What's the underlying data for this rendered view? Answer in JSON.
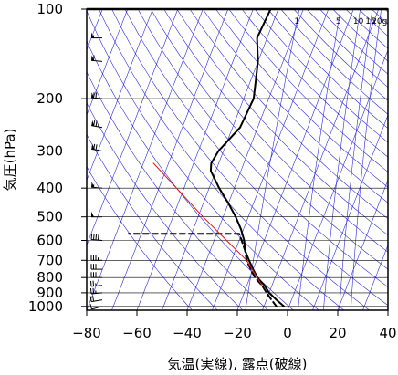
{
  "chart_data": {
    "type": "line",
    "subtype": "skew-T log-P sounding diagram",
    "xlabel": "気温(実線), 露点(破線)",
    "ylabel": "気圧(hPa)",
    "x_ticks": [
      -80,
      -60,
      -40,
      -20,
      0,
      20,
      40
    ],
    "y_ticks": [
      100,
      200,
      300,
      400,
      500,
      600,
      700,
      800,
      900,
      1000
    ],
    "xlim": [
      -80,
      40
    ],
    "ylim": [
      1030,
      100
    ],
    "y_scale": "log",
    "mixing_ratio_labels": [
      "1",
      "5",
      "10",
      "15",
      "20g"
    ],
    "mixing_ratio_values": [
      1,
      5,
      10,
      15,
      20
    ],
    "grid": true,
    "colors": {
      "frame": "#000000",
      "reference_lines": "#2b2bdc",
      "temperature": "#000000",
      "dewpoint": "#000000",
      "lifted_parcel": "#e01414",
      "wind_barbs": "#000000"
    },
    "series": [
      {
        "role": "temperature",
        "style": "solid",
        "points": [
          {
            "p": 1000,
            "t": -2
          },
          {
            "p": 950,
            "t": -6
          },
          {
            "p": 900,
            "t": -10
          },
          {
            "p": 850,
            "t": -13
          },
          {
            "p": 800,
            "t": -17
          },
          {
            "p": 750,
            "t": -20
          },
          {
            "p": 700,
            "t": -23
          },
          {
            "p": 650,
            "t": -26
          },
          {
            "p": 600,
            "t": -28
          },
          {
            "p": 550,
            "t": -31
          },
          {
            "p": 500,
            "t": -35
          },
          {
            "p": 450,
            "t": -40
          },
          {
            "p": 400,
            "t": -46
          },
          {
            "p": 350,
            "t": -52
          },
          {
            "p": 330,
            "t": -53
          },
          {
            "p": 300,
            "t": -52
          },
          {
            "p": 250,
            "t": -47
          },
          {
            "p": 200,
            "t": -46
          },
          {
            "p": 150,
            "t": -50
          },
          {
            "p": 125,
            "t": -54
          },
          {
            "p": 100,
            "t": -53
          }
        ]
      },
      {
        "role": "dewpoint",
        "style": "dashed",
        "points": [
          {
            "p": 1000,
            "t": -5
          },
          {
            "p": 950,
            "t": -8
          },
          {
            "p": 900,
            "t": -11
          },
          {
            "p": 850,
            "t": -14
          },
          {
            "p": 800,
            "t": -18
          },
          {
            "p": 750,
            "t": -21
          },
          {
            "p": 700,
            "t": -24
          },
          {
            "p": 650,
            "t": -26
          },
          {
            "p": 600,
            "t": -29
          },
          {
            "p": 570,
            "t": -31
          },
          {
            "p": 570,
            "t": -75
          }
        ]
      },
      {
        "role": "lifted parcel",
        "style": "solid",
        "points": [
          {
            "p": 850,
            "t": -14
          },
          {
            "p": 700,
            "t": -24
          },
          {
            "p": 600,
            "t": -35
          },
          {
            "p": 500,
            "t": -48
          },
          {
            "p": 400,
            "t": -63
          },
          {
            "p": 330,
            "t": -76
          }
        ]
      }
    ],
    "wind_barbs": [
      {
        "p": 1000,
        "dir": 255,
        "speed": 10
      },
      {
        "p": 950,
        "dir": 260,
        "speed": 20
      },
      {
        "p": 900,
        "dir": 265,
        "speed": 25
      },
      {
        "p": 850,
        "dir": 265,
        "speed": 25
      },
      {
        "p": 800,
        "dir": 270,
        "speed": 30
      },
      {
        "p": 750,
        "dir": 270,
        "speed": 30
      },
      {
        "p": 700,
        "dir": 270,
        "speed": 35
      },
      {
        "p": 600,
        "dir": 275,
        "speed": 40
      },
      {
        "p": 500,
        "dir": 270,
        "speed": 50
      },
      {
        "p": 400,
        "dir": 275,
        "speed": 55
      },
      {
        "p": 300,
        "dir": 280,
        "speed": 70
      },
      {
        "p": 250,
        "dir": 280,
        "speed": 75
      },
      {
        "p": 200,
        "dir": 275,
        "speed": 70
      },
      {
        "p": 150,
        "dir": 275,
        "speed": 60
      },
      {
        "p": 125,
        "dir": 270,
        "speed": 55
      },
      {
        "p": 100,
        "dir": 270,
        "speed": 50
      }
    ]
  }
}
